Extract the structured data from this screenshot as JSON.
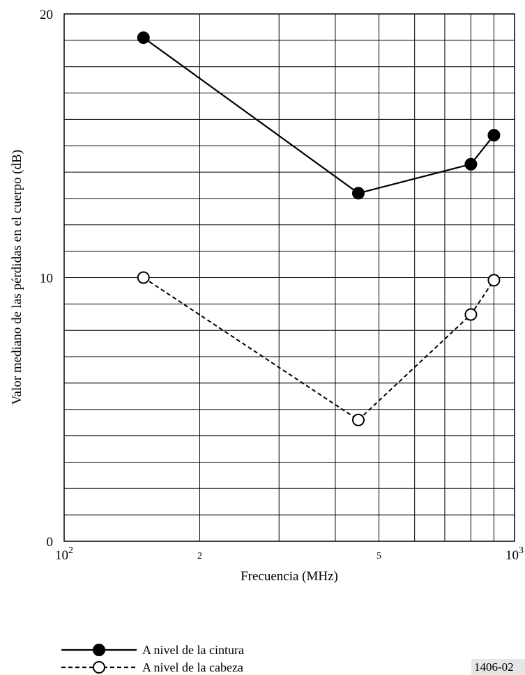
{
  "chart_data": {
    "type": "line",
    "x_scale": "log",
    "xlim": [
      100,
      1000
    ],
    "ylim": [
      0,
      20
    ],
    "grid": true,
    "xlabel": "Frecuencia (MHz)",
    "ylabel": "Valor mediano de las pérdidas en el cuerpo (dB)",
    "y_ticks": [
      "0",
      "10",
      "20"
    ],
    "x_tick_labels": [
      {
        "value": 100,
        "base": "10",
        "exp": "2"
      },
      {
        "value": 200,
        "base": "2",
        "exp": ""
      },
      {
        "value": 500,
        "base": "5",
        "exp": ""
      },
      {
        "value": 1000,
        "base": "10",
        "exp": "3"
      }
    ],
    "legend_position": "bottom-left",
    "series": [
      {
        "name": "A nivel de la cintura",
        "style": "solid",
        "marker": "filled-circle",
        "color": "#000000",
        "x": [
          150,
          450,
          800,
          900
        ],
        "y": [
          19.1,
          13.2,
          14.3,
          15.4
        ]
      },
      {
        "name": "A nivel de la cabeza",
        "style": "dashed",
        "marker": "open-circle",
        "color": "#000000",
        "x": [
          150,
          450,
          800,
          900
        ],
        "y": [
          10.0,
          4.6,
          8.6,
          9.9
        ]
      }
    ]
  },
  "figure_id": "1406-02"
}
